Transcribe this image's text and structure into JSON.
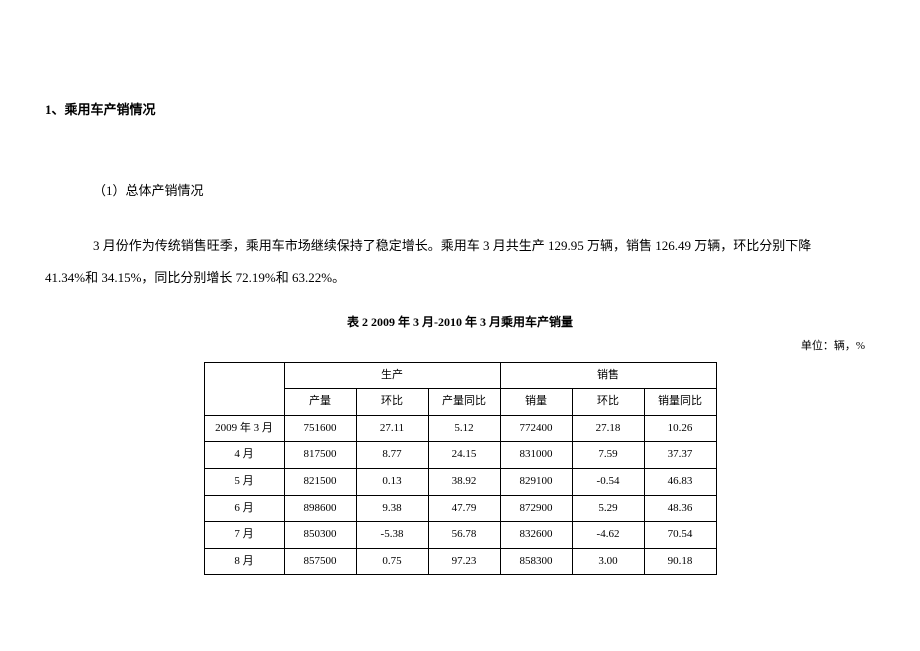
{
  "section_title": "1、乘用车产销情况",
  "subsection_title": "（1）总体产销情况",
  "paragraph_line1": "3 月份作为传统销售旺季，乘用车市场继续保持了稳定增长。乘用车 3 月共生产 129.95 万辆，销售 126.49 万辆，环比分别下降",
  "paragraph_line2": "41.34%和 34.15%，同比分别增长 72.19%和 63.22%。",
  "table_title": "表 2  2009 年 3 月-2010 年 3 月乘用车产销量",
  "unit_label": "单位：辆，%",
  "table": {
    "header_group_production": "生产",
    "header_group_sales": "销售",
    "col_volume_prod": "产量",
    "col_mom_prod": "环比",
    "col_yoy_prod": "产量同比",
    "col_volume_sale": "销量",
    "col_mom_sale": "环比",
    "col_yoy_sale": "销量同比",
    "rows": [
      {
        "label": "2009 年 3 月",
        "prod_vol": "751600",
        "prod_mom": "27.11",
        "prod_yoy": "5.12",
        "sale_vol": "772400",
        "sale_mom": "27.18",
        "sale_yoy": "10.26"
      },
      {
        "label": "4 月",
        "prod_vol": "817500",
        "prod_mom": "8.77",
        "prod_yoy": "24.15",
        "sale_vol": "831000",
        "sale_mom": "7.59",
        "sale_yoy": "37.37"
      },
      {
        "label": "5 月",
        "prod_vol": "821500",
        "prod_mom": "0.13",
        "prod_yoy": "38.92",
        "sale_vol": "829100",
        "sale_mom": "-0.54",
        "sale_yoy": "46.83"
      },
      {
        "label": "6 月",
        "prod_vol": "898600",
        "prod_mom": "9.38",
        "prod_yoy": "47.79",
        "sale_vol": "872900",
        "sale_mom": "5.29",
        "sale_yoy": "48.36"
      },
      {
        "label": "7 月",
        "prod_vol": "850300",
        "prod_mom": "-5.38",
        "prod_yoy": "56.78",
        "sale_vol": "832600",
        "sale_mom": "-4.62",
        "sale_yoy": "70.54"
      },
      {
        "label": "8 月",
        "prod_vol": "857500",
        "prod_mom": "0.75",
        "prod_yoy": "97.23",
        "sale_vol": "858300",
        "sale_mom": "3.00",
        "sale_yoy": "90.18"
      }
    ]
  }
}
